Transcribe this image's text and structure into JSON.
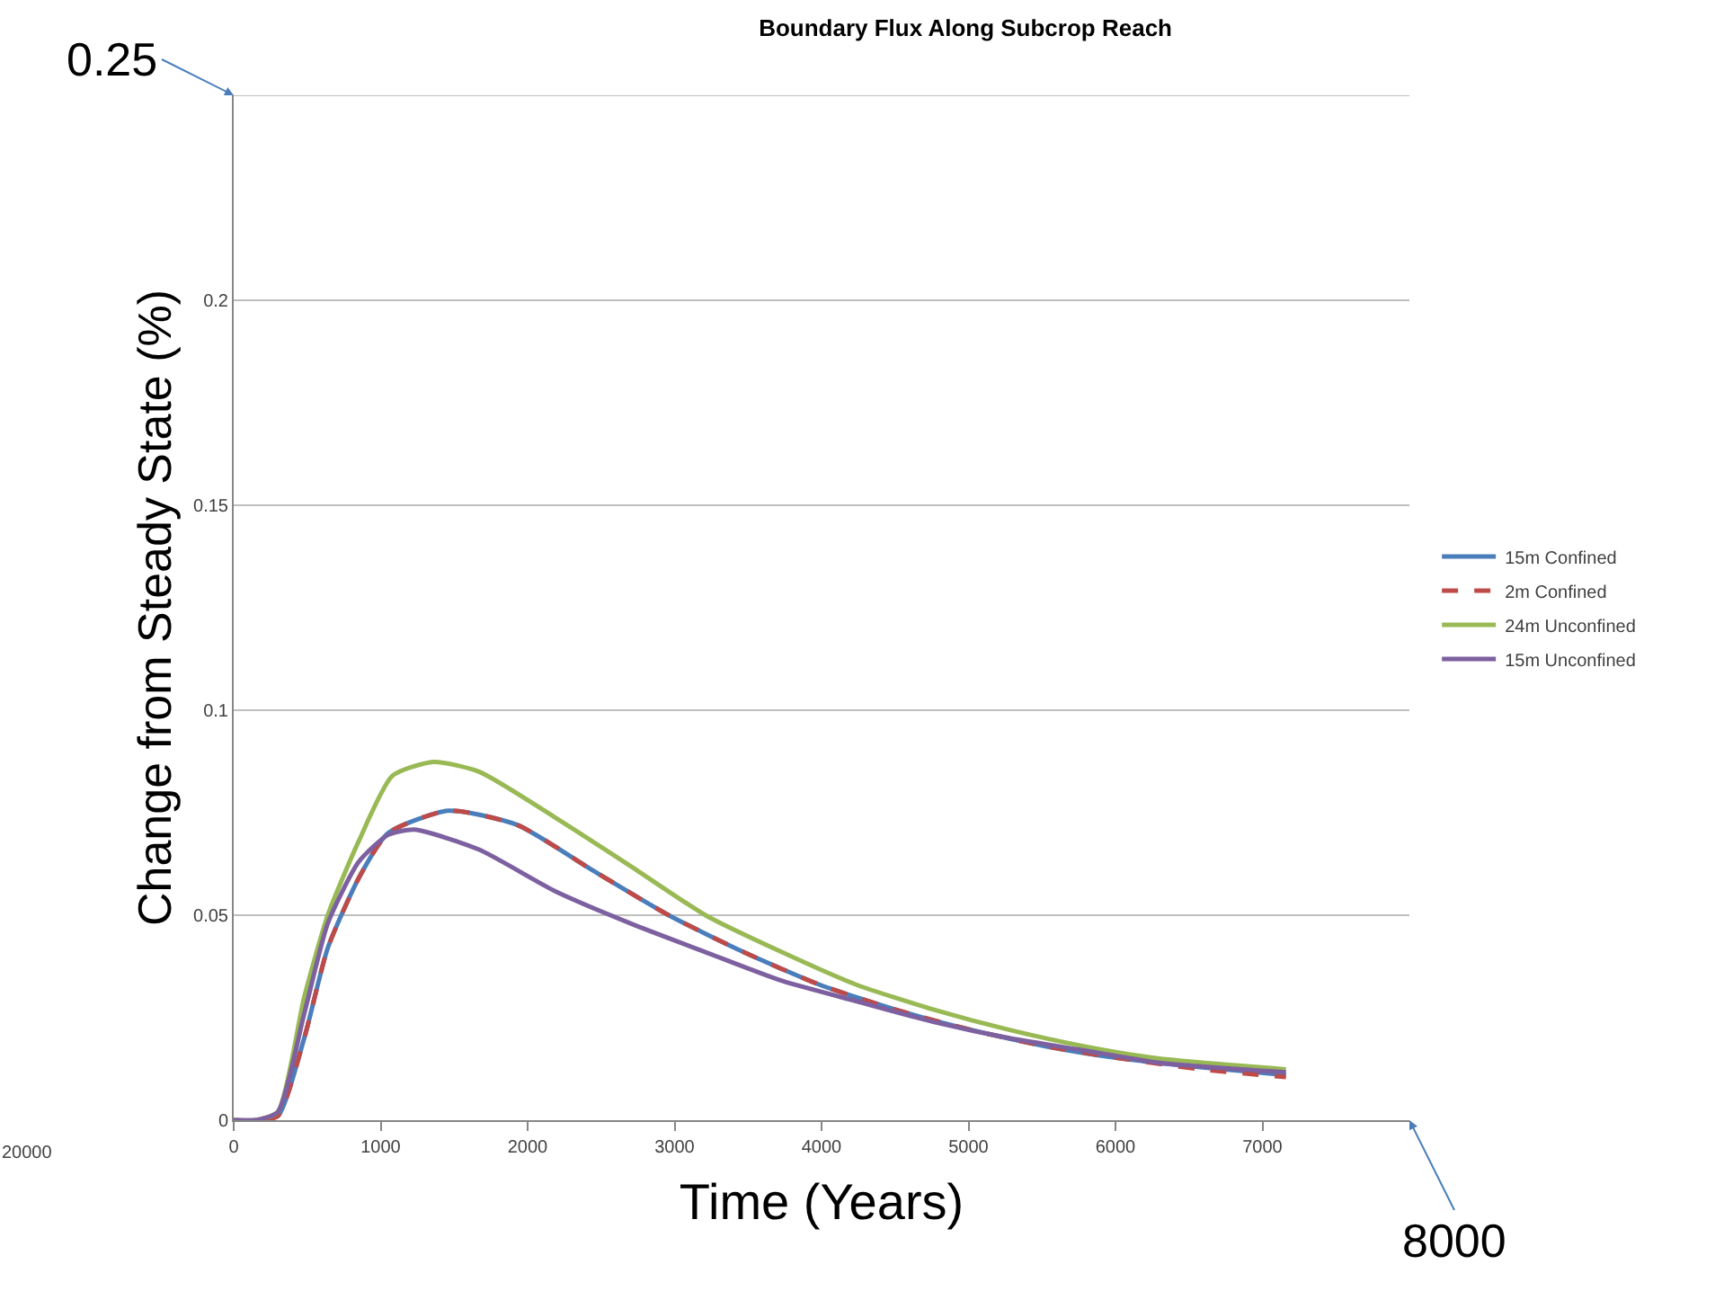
{
  "chart_data": {
    "type": "line",
    "title": "Boundary Flux Along Subcrop Reach",
    "xlabel": "Time (Years)",
    "ylabel": "Change from Steady State (%)",
    "xlim": [
      0,
      8000
    ],
    "xticks": [
      0,
      1000,
      2000,
      3000,
      4000,
      5000,
      6000,
      7000
    ],
    "ylim": [
      0,
      0.25
    ],
    "yticks": [
      0,
      0.05,
      0.1,
      0.15,
      0.2,
      {
        "value": 0.25,
        "label": null
      }
    ],
    "grid": "y",
    "legend": "right",
    "line_style": "solid",
    "annotations": [
      "0.25",
      "8000",
      "20000"
    ],
    "series": [
      {
        "name": "15m Confined",
        "color": "#4a7ebb",
        "x": [
          0,
          150,
          300,
          480,
          640,
          850,
          1050,
          1460,
          1930,
          2440,
          2960,
          3470,
          3990,
          4500,
          5020,
          5530,
          6050,
          6560,
          7160
        ],
        "values": [
          0,
          0,
          0.001,
          0.02,
          0.042,
          0.059,
          0.07,
          0.0755,
          0.072,
          0.061,
          0.05,
          0.041,
          0.033,
          0.027,
          0.022,
          0.018,
          0.015,
          0.013,
          0.011
        ]
      },
      {
        "name": "2m Confined",
        "color": "#be4b48",
        "line_style": "dashed",
        "x": [
          0,
          150,
          300,
          480,
          640,
          850,
          1050,
          1460,
          1930,
          2440,
          2960,
          3470,
          3990,
          4500,
          5020,
          5530,
          6050,
          6560,
          7160
        ],
        "values": [
          0,
          0,
          0.001,
          0.02,
          0.042,
          0.059,
          0.07,
          0.0755,
          0.072,
          0.061,
          0.05,
          0.041,
          0.033,
          0.027,
          0.022,
          0.018,
          0.015,
          0.0125,
          0.0105
        ]
      },
      {
        "name": "24m Unconfined",
        "color": "#98b954",
        "x": [
          0,
          150,
          300,
          480,
          640,
          850,
          1080,
          1360,
          1670,
          2180,
          2700,
          3210,
          3730,
          4240,
          4760,
          5280,
          5790,
          6300,
          7160
        ],
        "values": [
          0,
          0,
          0.002,
          0.03,
          0.05,
          0.068,
          0.084,
          0.0874,
          0.085,
          0.074,
          0.062,
          0.05,
          0.041,
          0.033,
          0.027,
          0.022,
          0.018,
          0.015,
          0.0124
        ]
      },
      {
        "name": "15m Unconfined",
        "color": "#7d60a0",
        "x": [
          0,
          150,
          300,
          480,
          640,
          850,
          1050,
          1230,
          1670,
          2180,
          2700,
          3210,
          3730,
          4240,
          4760,
          5280,
          5790,
          6300,
          7160
        ],
        "values": [
          0,
          0,
          0.002,
          0.026,
          0.048,
          0.063,
          0.0696,
          0.0709,
          0.066,
          0.056,
          0.048,
          0.041,
          0.034,
          0.029,
          0.024,
          0.02,
          0.017,
          0.014,
          0.0117
        ]
      }
    ]
  }
}
